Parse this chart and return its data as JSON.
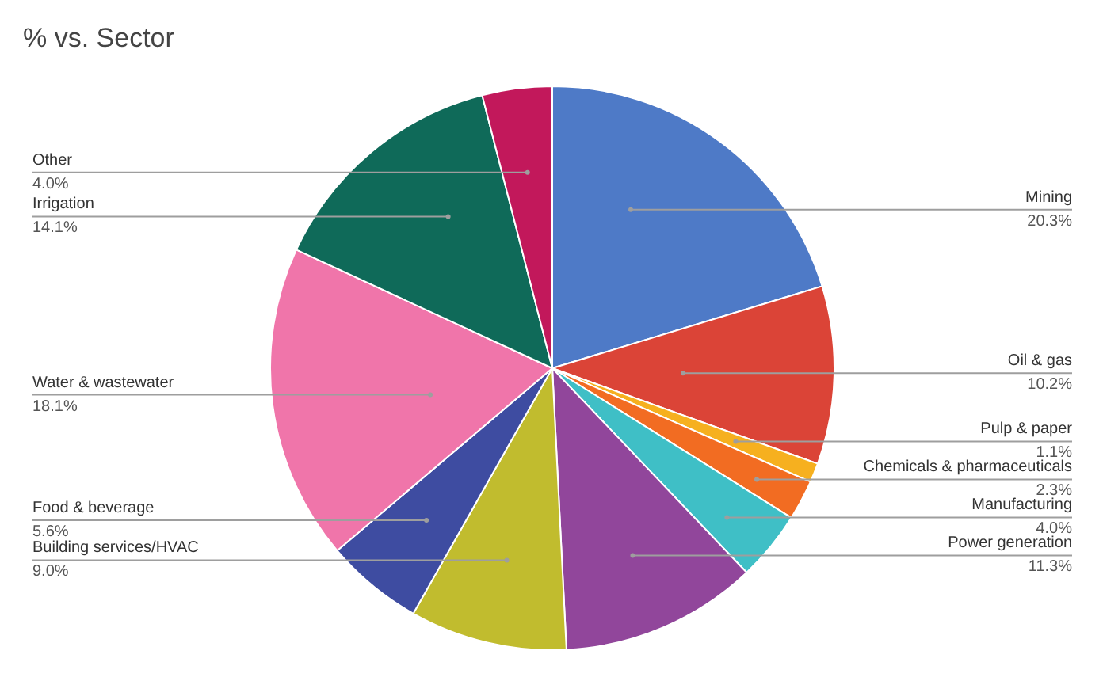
{
  "chart_data": {
    "type": "pie",
    "title": "% vs. Sector",
    "categories": [
      "Mining",
      "Oil & gas",
      "Pulp & paper",
      "Chemicals & pharmaceuticals",
      "Manufacturing",
      "Power generation",
      "Building services/HVAC",
      "Food & beverage",
      "Water & wastewater",
      "Irrigation",
      "Other"
    ],
    "values": [
      20.3,
      10.2,
      1.1,
      2.3,
      4.0,
      11.3,
      9.0,
      5.6,
      18.1,
      14.1,
      4.0
    ],
    "value_labels": [
      "20.3%",
      "10.2%",
      "1.1%",
      "2.3%",
      "4.0%",
      "11.3%",
      "9.0%",
      "5.6%",
      "18.1%",
      "14.1%",
      "4.0%"
    ],
    "colors": [
      "#4e7ac7",
      "#db4437",
      "#f6b01f",
      "#f26c22",
      "#3fbfc6",
      "#91469b",
      "#c1bc2e",
      "#3e4ca1",
      "#f075aa",
      "#0f6a59",
      "#c2185b"
    ]
  }
}
